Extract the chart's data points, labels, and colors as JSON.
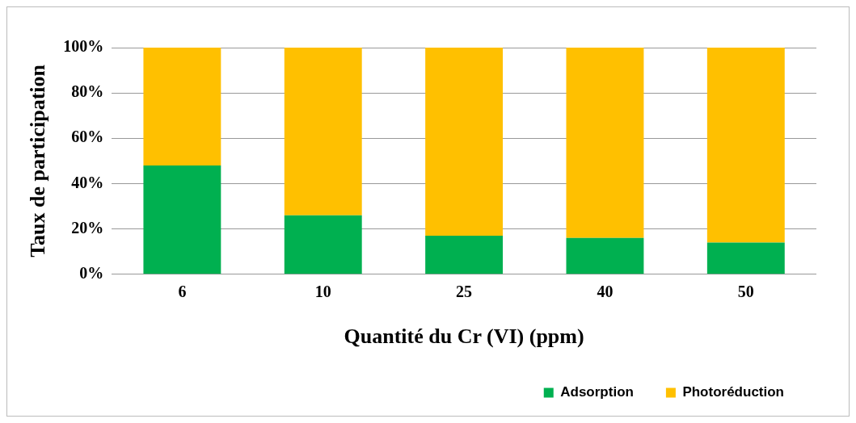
{
  "chart_data": {
    "type": "bar",
    "stacked": true,
    "xlabel": "Quantité du Cr (VI) (ppm)",
    "ylabel": "Taux de participation",
    "categories": [
      "6",
      "10",
      "25",
      "40",
      "50"
    ],
    "series": [
      {
        "name": "Adsorption",
        "color": "#00b050",
        "values": [
          48,
          26,
          17,
          16,
          14
        ]
      },
      {
        "name": "Photoréduction",
        "color": "#ffc000",
        "values": [
          52,
          74,
          83,
          84,
          86
        ]
      }
    ],
    "ylim": [
      0,
      100
    ],
    "yticks": [
      {
        "value": 0,
        "label": "0%"
      },
      {
        "value": 20,
        "label": "20%"
      },
      {
        "value": 40,
        "label": "40%"
      },
      {
        "value": 60,
        "label": "60%"
      },
      {
        "value": 80,
        "label": "80%"
      },
      {
        "value": 100,
        "label": "100%"
      }
    ],
    "grid": "y",
    "legend": "bottom right"
  }
}
